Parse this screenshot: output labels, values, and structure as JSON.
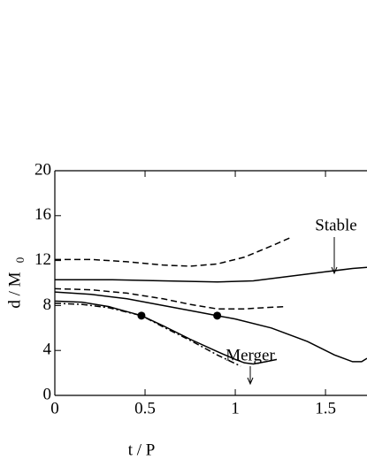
{
  "chart_data": {
    "type": "line",
    "xlabel": "t / P",
    "ylabel": "d / M",
    "ylabel_sub": "0",
    "xlim": [
      0,
      1.73
    ],
    "ylim": [
      0,
      20
    ],
    "xticks": [
      0,
      0.5,
      1,
      1.5
    ],
    "yticks": [
      0,
      4,
      8,
      12,
      16,
      20
    ],
    "color": "#000000",
    "series": [
      {
        "style": "dashed",
        "x": [
          0,
          0.2,
          0.4,
          0.6,
          0.75,
          0.9,
          1.05,
          1.2,
          1.3
        ],
        "values": [
          12.1,
          12.1,
          11.9,
          11.6,
          11.5,
          11.7,
          12.3,
          13.3,
          14.0
        ]
      },
      {
        "style": "solid",
        "x": [
          0,
          0.3,
          0.6,
          0.9,
          1.1,
          1.3,
          1.5,
          1.65,
          1.73
        ],
        "values": [
          10.3,
          10.3,
          10.2,
          10.1,
          10.2,
          10.6,
          11.0,
          11.3,
          11.4
        ]
      },
      {
        "style": "dashed",
        "x": [
          0,
          0.2,
          0.4,
          0.6,
          0.75,
          0.9,
          1.05,
          1.15,
          1.27
        ],
        "values": [
          9.5,
          9.4,
          9.1,
          8.6,
          8.1,
          7.7,
          7.7,
          7.8,
          7.9
        ]
      },
      {
        "style": "solid",
        "x": [
          0,
          0.2,
          0.4,
          0.6,
          0.8,
          0.9,
          1.0,
          1.2,
          1.4,
          1.55,
          1.65,
          1.7,
          1.73
        ],
        "values": [
          9.2,
          9.0,
          8.6,
          8.0,
          7.4,
          7.1,
          6.8,
          6.0,
          4.8,
          3.6,
          3.0,
          3.0,
          3.3
        ]
      },
      {
        "style": "solid",
        "x": [
          0,
          0.15,
          0.3,
          0.48,
          0.6,
          0.75,
          0.9,
          1.0,
          1.05,
          1.1,
          1.17,
          1.23
        ],
        "values": [
          8.4,
          8.3,
          7.9,
          7.1,
          6.2,
          5.0,
          3.9,
          3.2,
          2.9,
          2.8,
          3.0,
          3.2
        ]
      },
      {
        "style": "dashdot",
        "x": [
          0,
          0.15,
          0.3,
          0.48,
          0.6,
          0.75,
          0.9,
          1.03
        ],
        "values": [
          8.2,
          8.1,
          7.8,
          7.1,
          6.1,
          4.9,
          3.6,
          2.6
        ]
      }
    ],
    "points": {
      "x": [
        0.48,
        0.9
      ],
      "values": [
        7.1,
        7.1
      ]
    },
    "annotations": [
      "Stable",
      "Merger"
    ]
  }
}
